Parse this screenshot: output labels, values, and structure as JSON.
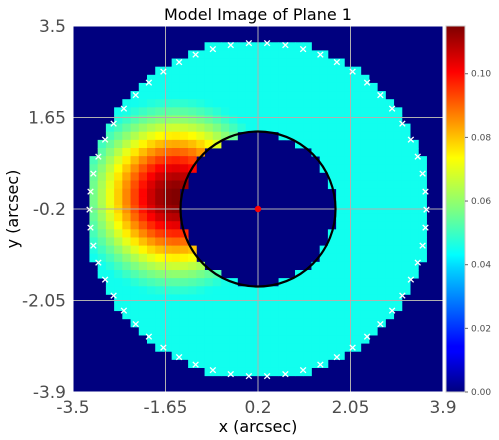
{
  "chart_data": {
    "type": "heatmap",
    "title": "Model Image of Plane 1",
    "xlabel": "x (arcsec)",
    "ylabel": "y (arcsec)",
    "xlim": [
      -3.5,
      3.9
    ],
    "ylim": [
      -3.9,
      3.5
    ],
    "x_ticks": [
      "-3.5",
      "-1.65",
      "0.2",
      "2.05",
      "3.9"
    ],
    "y_ticks": [
      "3.5",
      "1.65",
      "-0.2",
      "-2.05",
      "-3.9"
    ],
    "grid": true,
    "colormap": "jet",
    "colorbar": {
      "min": 0.0,
      "max": 0.115,
      "ticks": [
        "0.00",
        "0.02",
        "0.04",
        "0.06",
        "0.08",
        "0.10"
      ]
    },
    "ring": {
      "center": [
        0.2,
        -0.2
      ],
      "inner_radius": 1.55,
      "outer_radius": 3.45,
      "peak_position": [
        -1.45,
        0.05
      ],
      "peak_value": 0.115,
      "base_value": 0.032,
      "min_value": 0.045
    },
    "mask_circle": {
      "center": [
        0.2,
        -0.2
      ],
      "radius": 1.55,
      "color": "#000000"
    },
    "source_marker": {
      "position": [
        0.2,
        -0.2
      ],
      "color": "#ff0000"
    },
    "border_markers": {
      "symbol": "×",
      "color": "#ffffff"
    }
  }
}
